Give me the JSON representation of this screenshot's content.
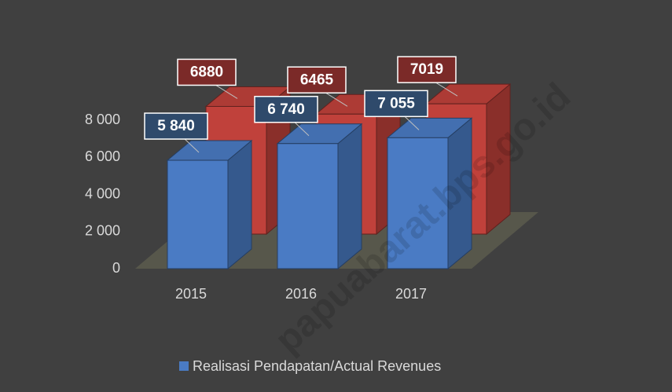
{
  "chart_data": {
    "type": "bar3d",
    "categories": [
      "2015",
      "2016",
      "2017"
    ],
    "series": [
      {
        "name": "Realisasi Pendapatan/Actual Revenues",
        "color": "#4a7bc4",
        "values": [
          5840,
          6740,
          7055
        ],
        "value_labels": [
          "5 840",
          "6 740",
          "7 055"
        ],
        "label_color": "#2f4a6b"
      },
      {
        "color": "#c0413b",
        "values": [
          6880,
          6465,
          7019
        ],
        "label_color": "#7b2a28"
      }
    ],
    "ylim": [
      0,
      8000
    ],
    "yticks": [
      {
        "value": 0,
        "label": "0"
      },
      {
        "value": 2000,
        "label": "2 000"
      },
      {
        "value": 4000,
        "label": "4 000"
      },
      {
        "value": 6000,
        "label": "6 000"
      },
      {
        "value": 8000,
        "label": "8 000"
      }
    ],
    "legend": "bottom",
    "watermark": "papuabarat.bps.go.id"
  }
}
